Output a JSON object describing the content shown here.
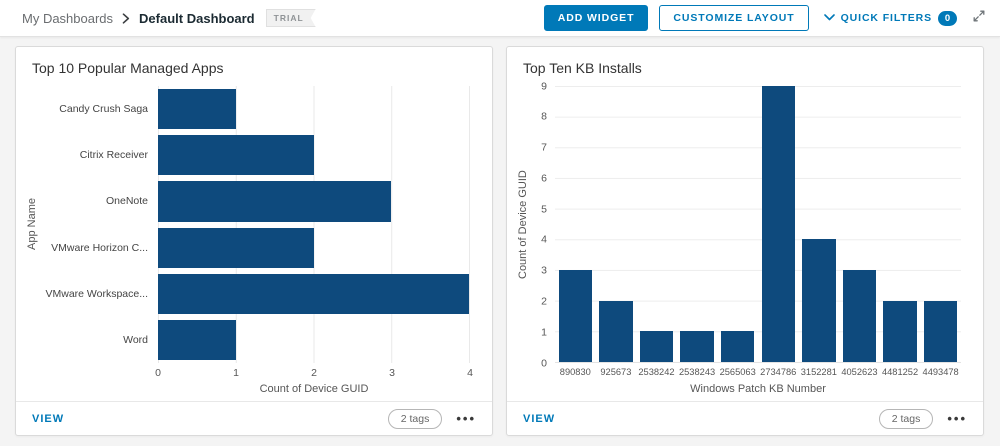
{
  "colors": {
    "bar": "#0e4a7d",
    "accent": "#0079b8",
    "grid": "#e9e9e9",
    "page_background": "#f4f4f4"
  },
  "icons": {
    "breadcrumb_separator": "chevron-right",
    "quick_filters_chevron": "chevron-down",
    "expand": "expand-diagonal-arrows",
    "overflow_menu": "ellipsis"
  },
  "header": {
    "breadcrumb": {
      "parent": "My Dashboards",
      "current": "Default Dashboard",
      "trial_badge": "TRIAL"
    },
    "add_widget_label": "ADD WIDGET",
    "customize_layout_label": "CUSTOMIZE LAYOUT",
    "quick_filters_label": "QUICK FILTERS",
    "quick_filters_count": "0"
  },
  "widgets": [
    {
      "footer": {
        "view_label": "VIEW",
        "tags_label": "2 tags",
        "menu_glyph": "•••"
      }
    },
    {
      "footer": {
        "view_label": "VIEW",
        "tags_label": "2 tags",
        "menu_glyph": "•••"
      }
    }
  ],
  "chart_data": [
    {
      "type": "bar",
      "orientation": "horizontal",
      "title": "Top 10 Popular Managed Apps",
      "categories": [
        "Candy Crush Saga",
        "Citrix Receiver",
        "OneNote",
        "VMware Horizon C...",
        "VMware Workspace...",
        "Word"
      ],
      "values": [
        1,
        2,
        3,
        2,
        4,
        1
      ],
      "xlabel": "Count of Device GUID",
      "ylabel": "App Name",
      "xlim": [
        0,
        4
      ],
      "xticks": [
        0,
        1,
        2,
        3,
        4
      ],
      "grid": true,
      "legend": false
    },
    {
      "type": "bar",
      "orientation": "vertical",
      "title": "Top Ten KB Installs",
      "categories": [
        "890830",
        "925673",
        "2538242",
        "2538243",
        "2565063",
        "2734786",
        "3152281",
        "4052623",
        "4481252",
        "4493478"
      ],
      "values": [
        3,
        2,
        1,
        1,
        1,
        9,
        4,
        3,
        2,
        2
      ],
      "xlabel": "Windows Patch KB Number",
      "ylabel": "Count of Device GUID",
      "ylim": [
        0,
        9
      ],
      "yticks": [
        0,
        1,
        2,
        3,
        4,
        5,
        6,
        7,
        8,
        9
      ],
      "grid": true,
      "legend": false
    }
  ]
}
